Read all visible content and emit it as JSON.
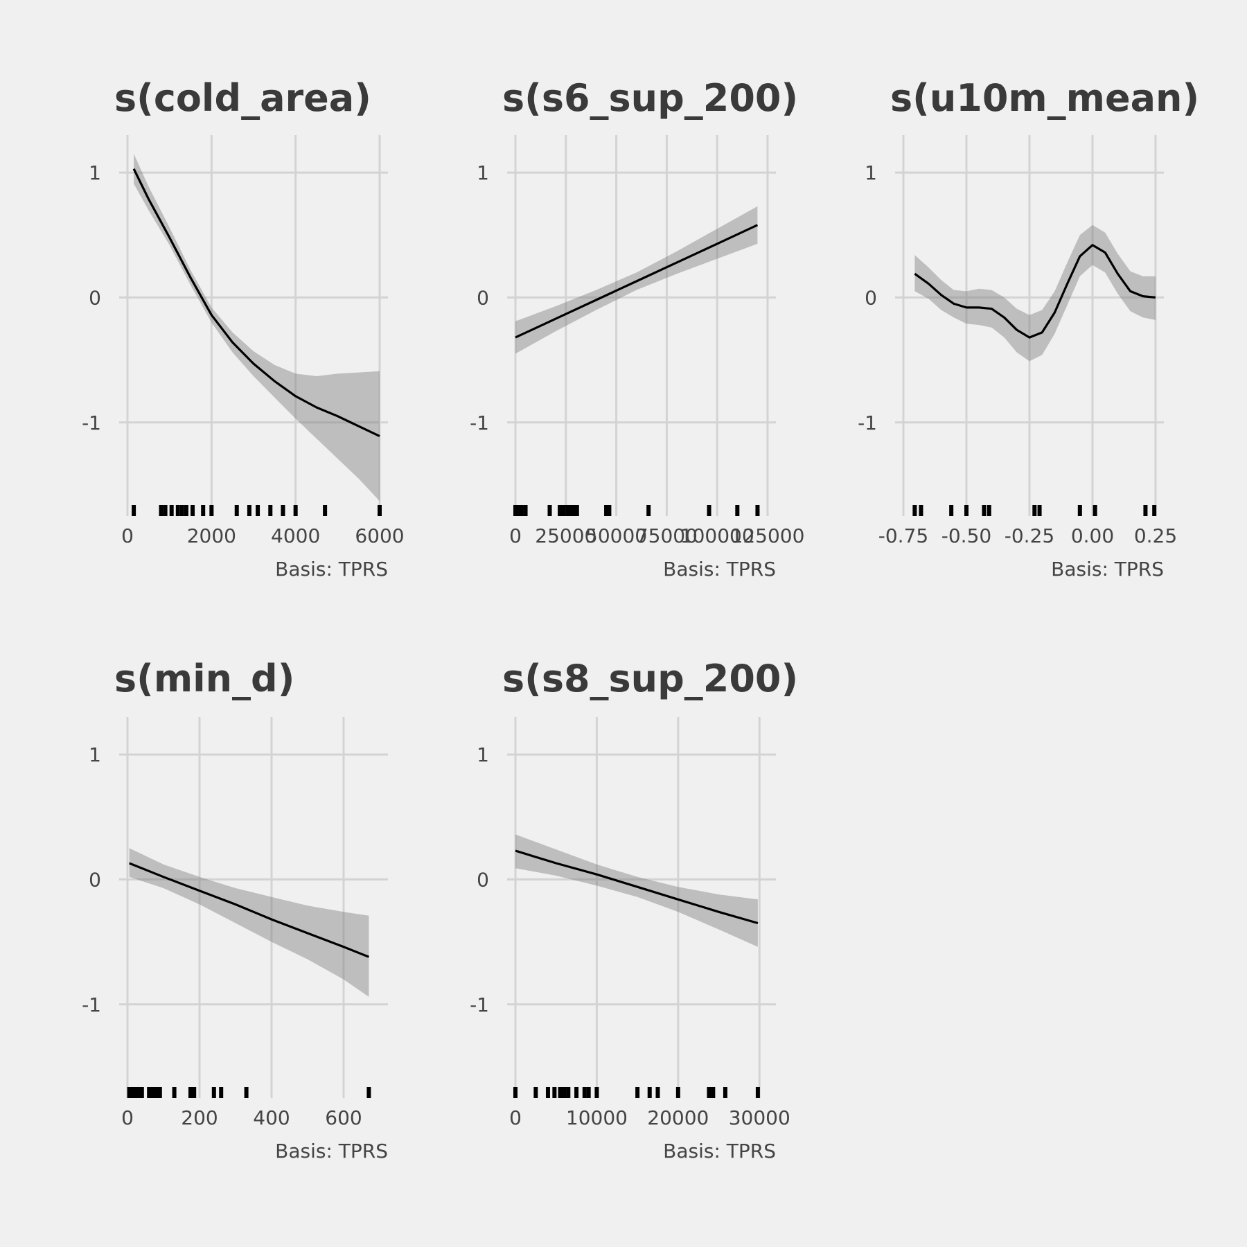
{
  "figure": {
    "background": "#f0f0f0",
    "line_color": "#000000",
    "band_color": "#7a7a7a",
    "grid_color": "#d3d3d3"
  },
  "chart_data": [
    {
      "type": "line",
      "title": "s(cold_area)",
      "caption": "Basis: TPRS",
      "xlim": [
        0,
        6000
      ],
      "ylim": [
        -1.75,
        1.3
      ],
      "xticks": [
        0,
        2000,
        4000,
        6000
      ],
      "xtick_labels": [
        "0",
        "2000",
        "4000",
        "6000"
      ],
      "yticks": [
        -1,
        0,
        1
      ],
      "ytick_labels": [
        "-1",
        "0",
        "1"
      ],
      "grid": true,
      "x": [
        150,
        500,
        1000,
        1500,
        2000,
        2500,
        3000,
        3500,
        4000,
        4500,
        5000,
        5500,
        6000
      ],
      "y": [
        1.03,
        0.79,
        0.48,
        0.16,
        -0.14,
        -0.36,
        -0.53,
        -0.67,
        -0.79,
        -0.88,
        -0.95,
        -1.03,
        -1.11
      ],
      "lower": [
        0.91,
        0.7,
        0.42,
        0.1,
        -0.2,
        -0.44,
        -0.63,
        -0.8,
        -0.97,
        -1.13,
        -1.29,
        -1.45,
        -1.63
      ],
      "upper": [
        1.15,
        0.89,
        0.56,
        0.22,
        -0.08,
        -0.28,
        -0.43,
        -0.54,
        -0.61,
        -0.63,
        -0.61,
        -0.6,
        -0.59
      ],
      "rug": [
        150,
        800,
        900,
        1050,
        1200,
        1300,
        1400,
        1550,
        1800,
        2000,
        2600,
        2900,
        3100,
        3400,
        3700,
        4000,
        4700,
        6000
      ]
    },
    {
      "type": "line",
      "title": "s(s6_sup_200)",
      "caption": "Basis: TPRS",
      "xlim": [
        0,
        125000
      ],
      "ylim": [
        -1.75,
        1.3
      ],
      "xticks": [
        0,
        25000,
        50000,
        75000,
        100000,
        125000
      ],
      "xtick_labels": [
        "0",
        "25000",
        "50000",
        "75000",
        "100000",
        "125000"
      ],
      "yticks": [
        -1,
        0,
        1
      ],
      "ytick_labels": [
        "-1",
        "0",
        "1"
      ],
      "grid": true,
      "x": [
        0,
        20000,
        40000,
        60000,
        80000,
        100000,
        120000
      ],
      "y": [
        -0.32,
        -0.17,
        -0.02,
        0.13,
        0.28,
        0.43,
        0.58
      ],
      "lower": [
        -0.45,
        -0.27,
        -0.1,
        0.06,
        0.19,
        0.31,
        0.43
      ],
      "upper": [
        -0.19,
        -0.07,
        0.06,
        0.2,
        0.37,
        0.55,
        0.73
      ],
      "rug": [
        0,
        1500,
        3000,
        5000,
        17000,
        22000,
        24000,
        26000,
        27500,
        29000,
        30500,
        45000,
        46500,
        66000,
        96000,
        110000,
        120000
      ]
    },
    {
      "type": "line",
      "title": "s(u10m_mean)",
      "caption": "Basis: TPRS",
      "xlim": [
        -0.75,
        0.25
      ],
      "ylim": [
        -1.75,
        1.3
      ],
      "xticks": [
        -0.75,
        -0.5,
        -0.25,
        0.0,
        0.25
      ],
      "xtick_labels": [
        "-0.75",
        "-0.50",
        "-0.25",
        "0.00",
        "0.25"
      ],
      "yticks": [
        -1,
        0,
        1
      ],
      "ytick_labels": [
        "-1",
        "0",
        "1"
      ],
      "grid": true,
      "x": [
        -0.705,
        -0.65,
        -0.6,
        -0.55,
        -0.5,
        -0.45,
        -0.4,
        -0.35,
        -0.3,
        -0.25,
        -0.2,
        -0.15,
        -0.1,
        -0.05,
        0.0,
        0.05,
        0.1,
        0.15,
        0.2,
        0.25
      ],
      "y": [
        0.19,
        0.11,
        0.02,
        -0.05,
        -0.08,
        -0.08,
        -0.09,
        -0.16,
        -0.26,
        -0.32,
        -0.28,
        -0.12,
        0.11,
        0.33,
        0.42,
        0.36,
        0.19,
        0.05,
        0.01,
        0.0
      ],
      "lower": [
        0.05,
        -0.01,
        -0.1,
        -0.16,
        -0.21,
        -0.22,
        -0.24,
        -0.32,
        -0.44,
        -0.51,
        -0.46,
        -0.29,
        -0.06,
        0.17,
        0.26,
        0.2,
        0.03,
        -0.11,
        -0.16,
        -0.18
      ],
      "upper": [
        0.34,
        0.24,
        0.14,
        0.06,
        0.05,
        0.07,
        0.06,
        0.0,
        -0.09,
        -0.14,
        -0.1,
        0.05,
        0.28,
        0.5,
        0.58,
        0.52,
        0.35,
        0.21,
        0.17,
        0.17
      ],
      "rug": [
        -0.705,
        -0.68,
        -0.56,
        -0.5,
        -0.43,
        -0.41,
        -0.23,
        -0.21,
        -0.05,
        0.01,
        0.21,
        0.245
      ]
    },
    {
      "type": "line",
      "title": "s(min_d)",
      "caption": "Basis: TPRS",
      "xlim": [
        0,
        700
      ],
      "ylim": [
        -1.75,
        1.3
      ],
      "xticks": [
        0,
        200,
        400,
        600
      ],
      "xtick_labels": [
        "0",
        "200",
        "400",
        "600"
      ],
      "yticks": [
        -1,
        0,
        1
      ],
      "ytick_labels": [
        "-1",
        "0",
        "1"
      ],
      "grid": true,
      "x": [
        5,
        100,
        200,
        300,
        400,
        500,
        600,
        670
      ],
      "y": [
        0.13,
        0.02,
        -0.09,
        -0.2,
        -0.32,
        -0.43,
        -0.54,
        -0.62
      ],
      "lower": [
        0.02,
        -0.07,
        -0.2,
        -0.35,
        -0.5,
        -0.64,
        -0.8,
        -0.94
      ],
      "upper": [
        0.25,
        0.12,
        0.02,
        -0.07,
        -0.14,
        -0.21,
        -0.26,
        -0.29
      ],
      "rug": [
        5,
        10,
        15,
        20,
        25,
        30,
        35,
        40,
        60,
        70,
        80,
        90,
        130,
        175,
        185,
        240,
        260,
        330,
        670
      ]
    },
    {
      "type": "line",
      "title": "s(s8_sup_200)",
      "caption": "Basis: TPRS",
      "xlim": [
        0,
        31000
      ],
      "ylim": [
        -1.75,
        1.3
      ],
      "xticks": [
        0,
        10000,
        20000,
        30000
      ],
      "xtick_labels": [
        "0",
        "10000",
        "20000",
        "30000"
      ],
      "yticks": [
        -1,
        0,
        1
      ],
      "ytick_labels": [
        "-1",
        "0",
        "1"
      ],
      "grid": true,
      "x": [
        0,
        5000,
        10000,
        15000,
        20000,
        25000,
        29800
      ],
      "y": [
        0.23,
        0.13,
        0.04,
        -0.06,
        -0.16,
        -0.26,
        -0.35
      ],
      "lower": [
        0.09,
        0.03,
        -0.05,
        -0.14,
        -0.26,
        -0.4,
        -0.54
      ],
      "upper": [
        0.36,
        0.24,
        0.12,
        0.02,
        -0.06,
        -0.12,
        -0.16
      ],
      "rug": [
        0,
        2500,
        4000,
        4800,
        5500,
        6000,
        6500,
        7500,
        8500,
        9000,
        10000,
        15000,
        16500,
        17500,
        20000,
        23800,
        24300,
        25800,
        29800
      ]
    }
  ]
}
